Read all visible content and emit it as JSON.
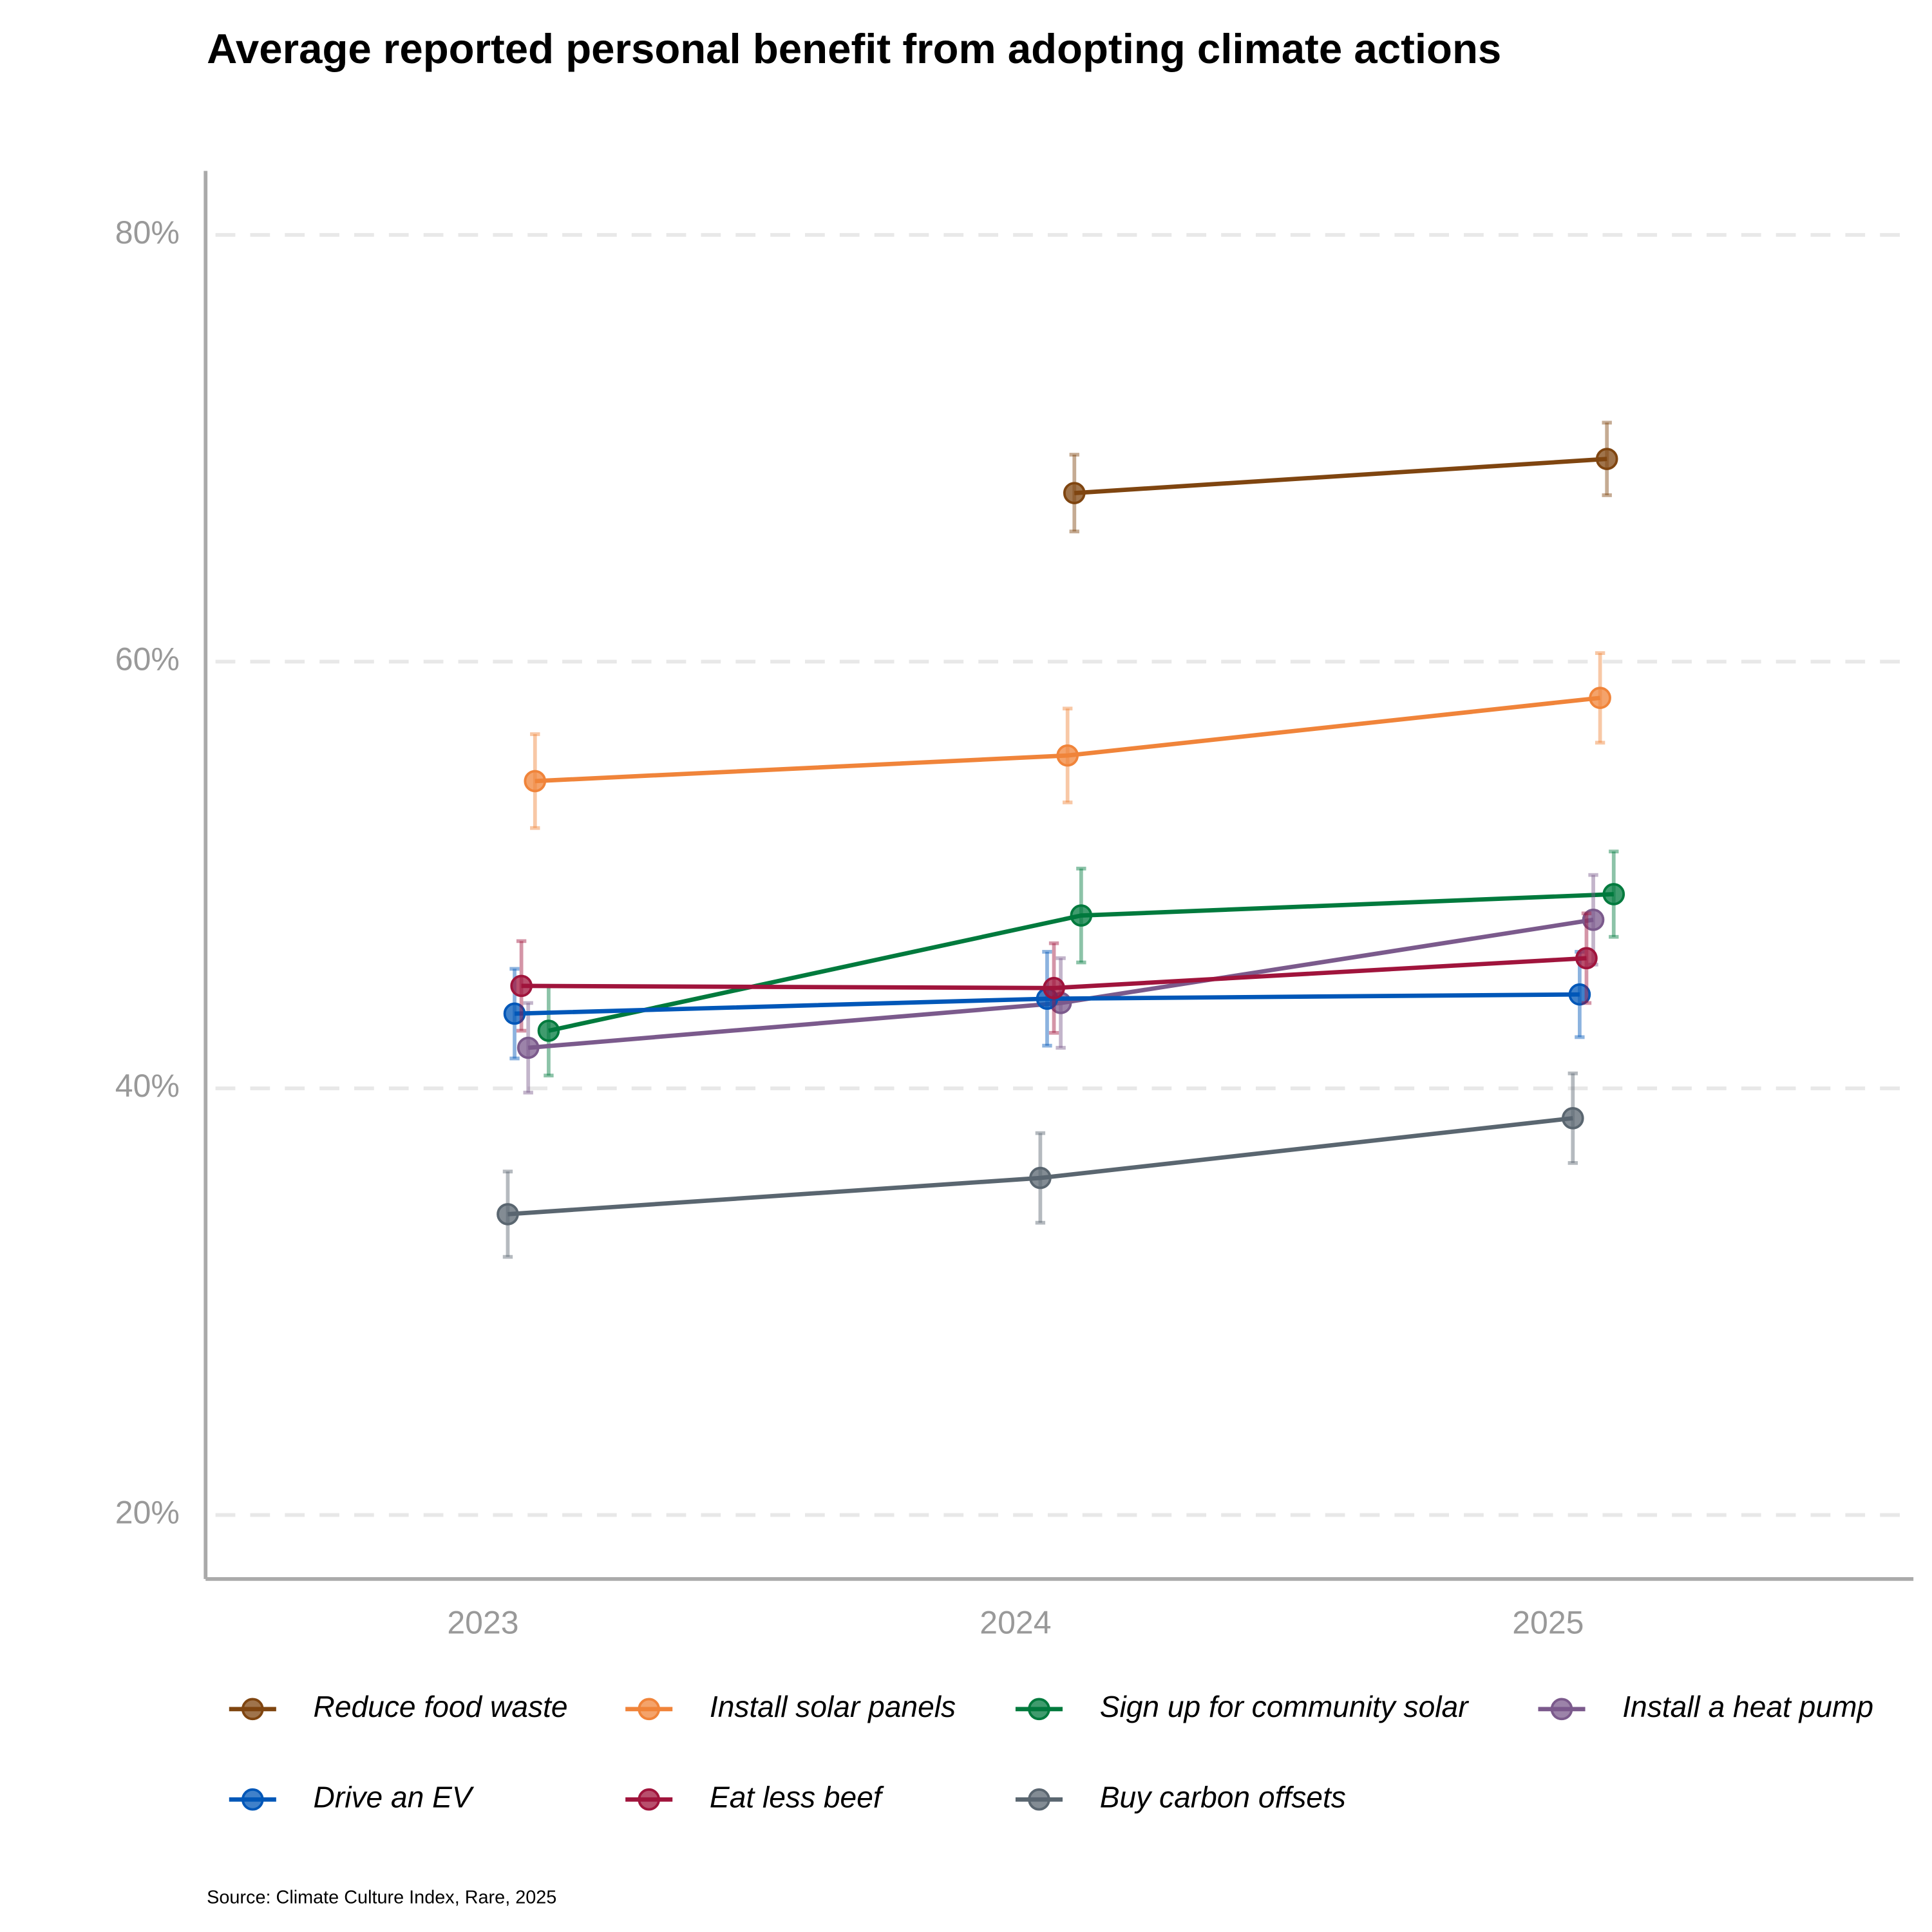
{
  "chart_data": {
    "type": "line",
    "title": "Average reported personal benefit from adopting climate actions",
    "source": "Source: Climate Culture Index, Rare, 2025",
    "categories": [
      "2023",
      "2024",
      "2025"
    ],
    "ylim": [
      17,
      83
    ],
    "yticks": [
      {
        "value": 20,
        "label": "20%"
      },
      {
        "value": 40,
        "label": "40%"
      },
      {
        "value": 60,
        "label": "60%"
      },
      {
        "value": 80,
        "label": "80%"
      }
    ],
    "grid": true,
    "legend": "bottom",
    "series": [
      {
        "name": "Reduce food waste",
        "color": "#7f4510",
        "values": [
          null,
          67.9,
          69.5
        ],
        "errors": [
          null,
          1.8,
          1.7
        ]
      },
      {
        "name": "Install solar panels",
        "color": "#f0843a",
        "values": [
          54.4,
          55.6,
          58.3
        ],
        "errors": [
          2.2,
          2.2,
          2.1
        ]
      },
      {
        "name": "Sign up for community solar",
        "color": "#007a3d",
        "values": [
          42.7,
          48.1,
          49.1
        ],
        "errors": [
          2.1,
          2.2,
          2.0
        ]
      },
      {
        "name": "Install a heat pump",
        "color": "#7b5a8c",
        "values": [
          41.9,
          44.0,
          47.9
        ],
        "errors": [
          2.1,
          2.1,
          2.1
        ]
      },
      {
        "name": "Drive an EV",
        "color": "#0057b8",
        "values": [
          43.5,
          44.2,
          44.4
        ],
        "errors": [
          2.1,
          2.2,
          2.0
        ]
      },
      {
        "name": "Eat less beef",
        "color": "#a0143c",
        "values": [
          44.8,
          44.7,
          46.1
        ],
        "errors": [
          2.1,
          2.1,
          2.1
        ]
      },
      {
        "name": "Buy carbon offsets",
        "color": "#5a6670",
        "values": [
          34.1,
          35.8,
          38.6
        ],
        "errors": [
          2.0,
          2.1,
          2.1
        ]
      }
    ]
  }
}
